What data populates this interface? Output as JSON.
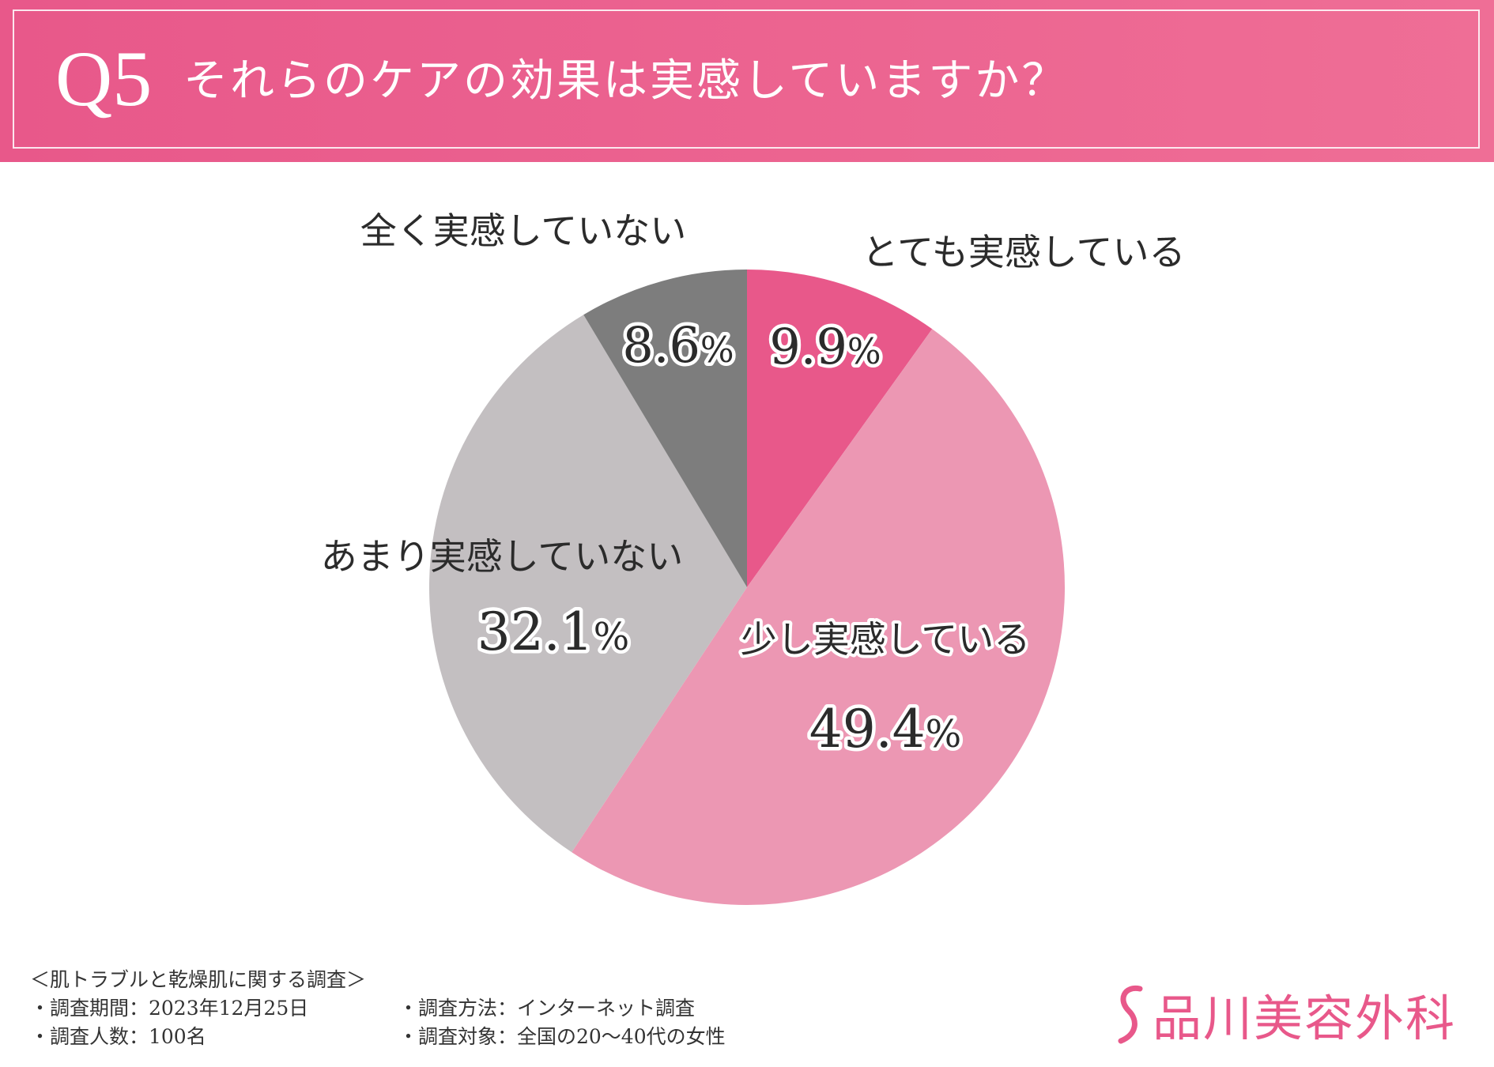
{
  "header": {
    "q_number": "Q5",
    "question": "それらのケアの効果は実感していますか？"
  },
  "chart_data": {
    "type": "pie",
    "title": "",
    "slices": [
      {
        "label": "とても実感している",
        "value": 9.9,
        "display": "9.9%",
        "color": "#e8588a"
      },
      {
        "label": "少し実感している",
        "value": 49.4,
        "display": "49.4%",
        "color": "#ec97b3"
      },
      {
        "label": "あまり実感していない",
        "value": 32.1,
        "display": "32.1%",
        "color": "#c3bfc1"
      },
      {
        "label": "全く実感していない",
        "value": 8.6,
        "display": "8.6%",
        "color": "#7d7d7d"
      }
    ],
    "start_angle_deg": 0,
    "direction": "clockwise",
    "legend": "none"
  },
  "footer": {
    "survey_title": "＜肌トラブルと乾燥肌に関する調査＞",
    "period": "・調査期間：2023年12月25日",
    "method": "・調査方法：インターネット調査",
    "respondents": "・調査人数：100名",
    "target": "・調査対象：全国の20～40代の女性"
  },
  "logo": {
    "text": "品川美容外科",
    "icon": "s-mark-icon",
    "color": "#e8588a"
  }
}
